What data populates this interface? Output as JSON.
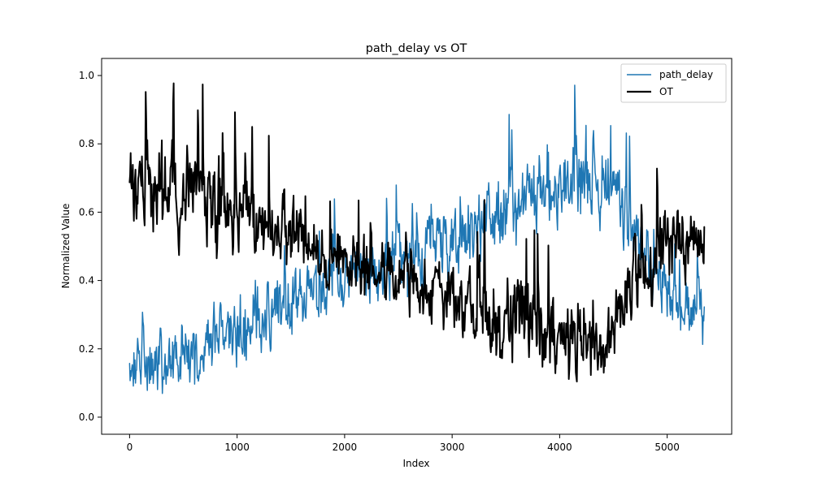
{
  "chart_data": {
    "type": "line",
    "title": "path_delay vs OT",
    "xlabel": "Index",
    "ylabel": "Normalized Value",
    "xlim": [
      -260,
      5600
    ],
    "ylim": [
      -0.05,
      1.05
    ],
    "x_ticks": [
      0,
      1000,
      2000,
      3000,
      4000,
      5000
    ],
    "y_ticks": [
      0.0,
      0.2,
      0.4,
      0.6,
      0.8,
      1.0
    ],
    "x_tick_labels": [
      "0",
      "1000",
      "2000",
      "3000",
      "4000",
      "5000"
    ],
    "y_tick_labels": [
      "0.0",
      "0.2",
      "0.4",
      "0.6",
      "0.8",
      "1.0"
    ],
    "grid": false,
    "legend_position": "top-right",
    "n_points": 5350,
    "series": [
      {
        "name": "path_delay",
        "color": "#1f77b4",
        "line_width": 1.5,
        "trend": [
          {
            "x": 0,
            "low": 0.05,
            "mid": 0.13,
            "high": 0.34
          },
          {
            "x": 600,
            "low": 0.05,
            "mid": 0.19,
            "high": 0.45
          },
          {
            "x": 1200,
            "low": 0.14,
            "mid": 0.28,
            "high": 0.55
          },
          {
            "x": 1800,
            "low": 0.26,
            "mid": 0.38,
            "high": 0.63
          },
          {
            "x": 2400,
            "low": 0.34,
            "mid": 0.45,
            "high": 0.68
          },
          {
            "x": 3000,
            "low": 0.38,
            "mid": 0.52,
            "high": 0.78
          },
          {
            "x": 3600,
            "low": 0.5,
            "mid": 0.63,
            "high": 0.9
          },
          {
            "x": 4000,
            "low": 0.55,
            "mid": 0.68,
            "high": 0.98
          },
          {
            "x": 4500,
            "low": 0.5,
            "mid": 0.68,
            "high": 0.95
          },
          {
            "x": 4700,
            "low": 0.38,
            "mid": 0.52,
            "high": 0.78
          },
          {
            "x": 5000,
            "low": 0.22,
            "mid": 0.36,
            "high": 0.58
          },
          {
            "x": 5350,
            "low": 0.16,
            "mid": 0.28,
            "high": 0.52
          }
        ]
      },
      {
        "name": "OT",
        "color": "#000000",
        "line_width": 2.0,
        "trend": [
          {
            "x": 0,
            "low": 0.5,
            "mid": 0.67,
            "high": 0.95
          },
          {
            "x": 600,
            "low": 0.45,
            "mid": 0.66,
            "high": 0.99
          },
          {
            "x": 1200,
            "low": 0.42,
            "mid": 0.58,
            "high": 0.87
          },
          {
            "x": 1800,
            "low": 0.38,
            "mid": 0.48,
            "high": 0.72
          },
          {
            "x": 2400,
            "low": 0.3,
            "mid": 0.42,
            "high": 0.62
          },
          {
            "x": 3000,
            "low": 0.25,
            "mid": 0.36,
            "high": 0.6
          },
          {
            "x": 3600,
            "low": 0.15,
            "mid": 0.27,
            "high": 0.68
          },
          {
            "x": 4000,
            "low": 0.12,
            "mid": 0.24,
            "high": 0.5
          },
          {
            "x": 4400,
            "low": 0.08,
            "mid": 0.2,
            "high": 0.45
          },
          {
            "x": 4700,
            "low": 0.25,
            "mid": 0.4,
            "high": 0.68
          },
          {
            "x": 5000,
            "low": 0.35,
            "mid": 0.5,
            "high": 0.78
          },
          {
            "x": 5350,
            "low": 0.4,
            "mid": 0.53,
            "high": 0.72
          }
        ]
      }
    ]
  }
}
